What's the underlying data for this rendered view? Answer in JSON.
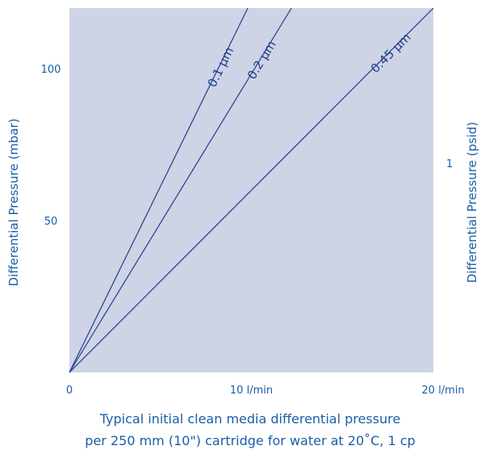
{
  "chart_data": {
    "type": "line",
    "xlabel": "",
    "ylabel": "Differential Pressure (mbar)",
    "ylabel_right": "Differential Pressure (psid)",
    "xlim": [
      0,
      20
    ],
    "ylim": [
      0,
      120
    ],
    "x_ticks": [
      {
        "value": 0,
        "label": "0"
      },
      {
        "value": 10,
        "label": "10 l/min"
      },
      {
        "value": 20,
        "label": "20 l/min"
      }
    ],
    "y_ticks": [
      {
        "value": 50,
        "label": "50"
      },
      {
        "value": 100,
        "label": "100"
      }
    ],
    "y_ticks_right": [
      {
        "value": 68.95,
        "label": "1"
      }
    ],
    "series": [
      {
        "name": "0.1 µm",
        "x": [
          0,
          9.8
        ],
        "y": [
          0,
          120
        ]
      },
      {
        "name": "0.2 µm",
        "x": [
          0,
          12.2
        ],
        "y": [
          0,
          120
        ]
      },
      {
        "name": "0.45 µm",
        "x": [
          0,
          20
        ],
        "y": [
          0,
          120
        ]
      }
    ],
    "caption_lines": [
      "Typical initial clean media differential pressure",
      "per 250 mm (10\") cartridge for water at 20˚C, 1 cp"
    ],
    "grid": false,
    "legend": "none",
    "colors": {
      "plot_bg": "#ced3e6",
      "line": "#1f3e8c",
      "text": "#1a5ea8"
    }
  }
}
